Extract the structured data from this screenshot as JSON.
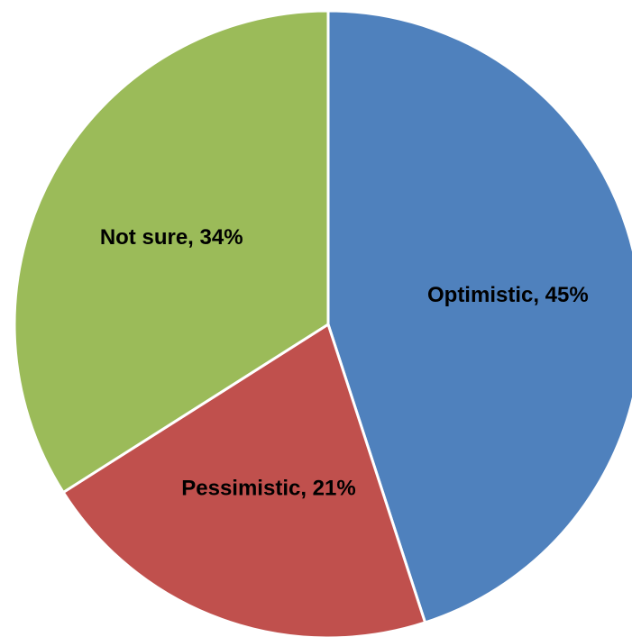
{
  "chart_data": {
    "type": "pie",
    "title": "",
    "slices": [
      {
        "label": "Optimistic",
        "value": 45,
        "display": "Optimistic, 45%",
        "color": "#4F81BD"
      },
      {
        "label": "Pessimistic",
        "value": 21,
        "display": "Pessimistic, 21%",
        "color": "#C0504D"
      },
      {
        "label": "Not sure",
        "value": 34,
        "display": "Not sure, 34%",
        "color": "#9BBB59"
      }
    ],
    "start_angle_deg": 0,
    "direction": "clockwise",
    "legend": "none",
    "data_labels": "inside"
  }
}
